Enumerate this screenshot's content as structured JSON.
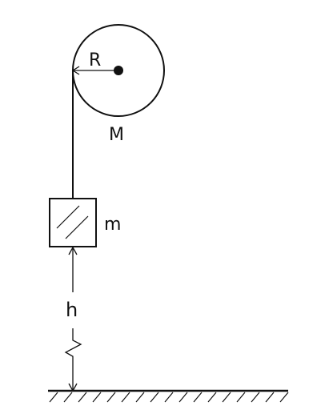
{
  "labels": {
    "radius": "R",
    "pulley_mass": "M",
    "block_mass": "m",
    "height": "h"
  },
  "colors": {
    "ink": "#111111",
    "background": "#ffffff"
  }
}
